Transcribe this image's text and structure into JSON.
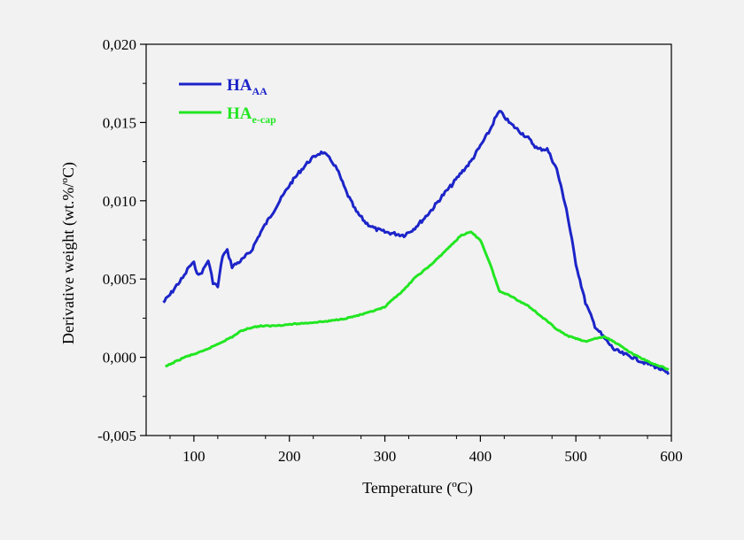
{
  "chart_data": {
    "type": "line",
    "xlabel": "Temperature (ºC)",
    "ylabel": "Derivative weight (wt.%/ºC)",
    "xlim": [
      50,
      600
    ],
    "ylim": [
      -0.005,
      0.02
    ],
    "x_ticks": [
      100,
      200,
      300,
      400,
      500,
      600
    ],
    "x_tick_labels": [
      "100",
      "200",
      "300",
      "400",
      "500",
      "600"
    ],
    "y_ticks": [
      -0.005,
      0.0,
      0.005,
      0.01,
      0.015,
      0.02
    ],
    "y_tick_labels": [
      "-0,005",
      "0,000",
      "0,005",
      "0,010",
      "0,015",
      "0,020"
    ],
    "legend_position": "top-left",
    "grid": false,
    "series": [
      {
        "name": "HA",
        "subscript": "AA",
        "color": "#1c24c8",
        "x": [
          68,
          75,
          82,
          90,
          95,
          100,
          105,
          110,
          115,
          120,
          125,
          130,
          135,
          140,
          150,
          160,
          170,
          180,
          190,
          200,
          210,
          220,
          230,
          235,
          240,
          245,
          250,
          260,
          270,
          280,
          290,
          300,
          310,
          320,
          330,
          340,
          350,
          360,
          370,
          380,
          390,
          400,
          410,
          415,
          420,
          425,
          430,
          440,
          450,
          460,
          470,
          480,
          490,
          500,
          510,
          520,
          530,
          540,
          550,
          560,
          570,
          580,
          590,
          597
        ],
        "y": [
          0.0035,
          0.004,
          0.0046,
          0.0052,
          0.0058,
          0.006,
          0.0052,
          0.0056,
          0.0062,
          0.0048,
          0.0045,
          0.0065,
          0.0068,
          0.0058,
          0.0062,
          0.0068,
          0.008,
          0.009,
          0.01,
          0.011,
          0.0118,
          0.0125,
          0.013,
          0.0131,
          0.0128,
          0.0125,
          0.012,
          0.0105,
          0.0093,
          0.0086,
          0.0082,
          0.008,
          0.0079,
          0.0078,
          0.0082,
          0.0088,
          0.0095,
          0.0103,
          0.011,
          0.0118,
          0.0125,
          0.0135,
          0.0145,
          0.0152,
          0.0157,
          0.0154,
          0.015,
          0.0145,
          0.014,
          0.0133,
          0.0133,
          0.012,
          0.0095,
          0.006,
          0.0035,
          0.002,
          0.0012,
          0.0005,
          0.0002,
          0.0,
          -0.0003,
          -0.0005,
          -0.0008,
          -0.0011
        ]
      },
      {
        "name": "HA",
        "subscript": "e-cap",
        "color": "#22e622",
        "x": [
          70,
          80,
          90,
          100,
          110,
          120,
          130,
          140,
          150,
          160,
          170,
          180,
          200,
          220,
          240,
          260,
          280,
          300,
          310,
          320,
          330,
          340,
          350,
          360,
          370,
          380,
          390,
          400,
          410,
          420,
          430,
          440,
          450,
          460,
          470,
          480,
          490,
          500,
          510,
          520,
          530,
          540,
          550,
          560,
          570,
          580,
          590,
          597
        ],
        "y": [
          -0.0006,
          -0.0003,
          0.0,
          0.0002,
          0.0004,
          0.0007,
          0.001,
          0.0013,
          0.0017,
          0.0019,
          0.002,
          0.002,
          0.0021,
          0.0022,
          0.0023,
          0.0025,
          0.0028,
          0.0032,
          0.0038,
          0.0043,
          0.005,
          0.0055,
          0.006,
          0.0066,
          0.0072,
          0.0078,
          0.008,
          0.0075,
          0.006,
          0.0042,
          0.004,
          0.0036,
          0.0033,
          0.0028,
          0.0023,
          0.0018,
          0.0014,
          0.0012,
          0.001,
          0.0012,
          0.0013,
          0.001,
          0.0006,
          0.0002,
          -0.0001,
          -0.0004,
          -0.0006,
          -0.0008
        ]
      }
    ]
  }
}
